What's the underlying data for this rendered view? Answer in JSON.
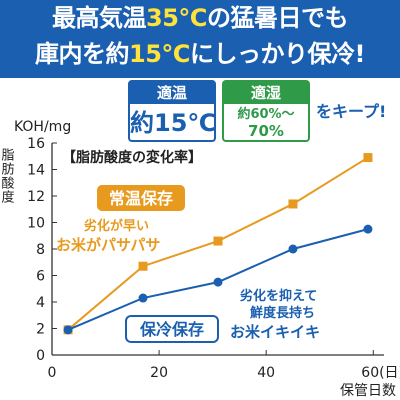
{
  "header": {
    "line1_part1": "最高気温",
    "line1_highlight": "35℃",
    "line1_part2": "の猛暑日でも",
    "line2_part1": "庫内を約",
    "line2_highlight": "15℃",
    "line2_part2": "にしっかり保冷!"
  },
  "keep_box": {
    "temp_title": "適温",
    "temp_value": "約15℃",
    "humid_title": "適湿",
    "humid_value_1": "約60%～",
    "humid_value_2": "70%",
    "keep_text": "をキープ!"
  },
  "colors": {
    "brand_blue": "#1a5fb0",
    "accent_yellow": "#ffe23a",
    "green": "#2f9a48",
    "room_temp_series": "#e89a1e",
    "cold_series": "#1a5fb0"
  },
  "chart_data": {
    "type": "line",
    "title": "【脂肪酸度の変化率】",
    "ylabel_unit": "KOH/mg",
    "ylabel": "脂肪酸度",
    "xlabel": "保管日数",
    "x_tick_labels": [
      "0",
      "20",
      "40",
      "60(日)"
    ],
    "y_tick_labels": [
      "0",
      "2",
      "4",
      "6",
      "8",
      "10",
      "12",
      "14",
      "16"
    ],
    "xlim": [
      0,
      62
    ],
    "ylim": [
      0,
      16
    ],
    "grid": false,
    "series": [
      {
        "name": "常温保存",
        "color": "#e89a1e",
        "x": [
          3,
          17,
          31,
          45,
          59
        ],
        "y": [
          1.9,
          6.7,
          8.6,
          11.4,
          14.9
        ],
        "annotation_1": "劣化が早い",
        "annotation_2": "お米がパサパサ"
      },
      {
        "name": "保冷保存",
        "color": "#1a5fb0",
        "x": [
          3,
          17,
          31,
          45,
          59
        ],
        "y": [
          1.9,
          4.3,
          5.5,
          8.0,
          9.5
        ],
        "annotation_1": "劣化を抑えて",
        "annotation_2": "鮮度長持ち",
        "annotation_3": "お米イキイキ"
      }
    ]
  }
}
